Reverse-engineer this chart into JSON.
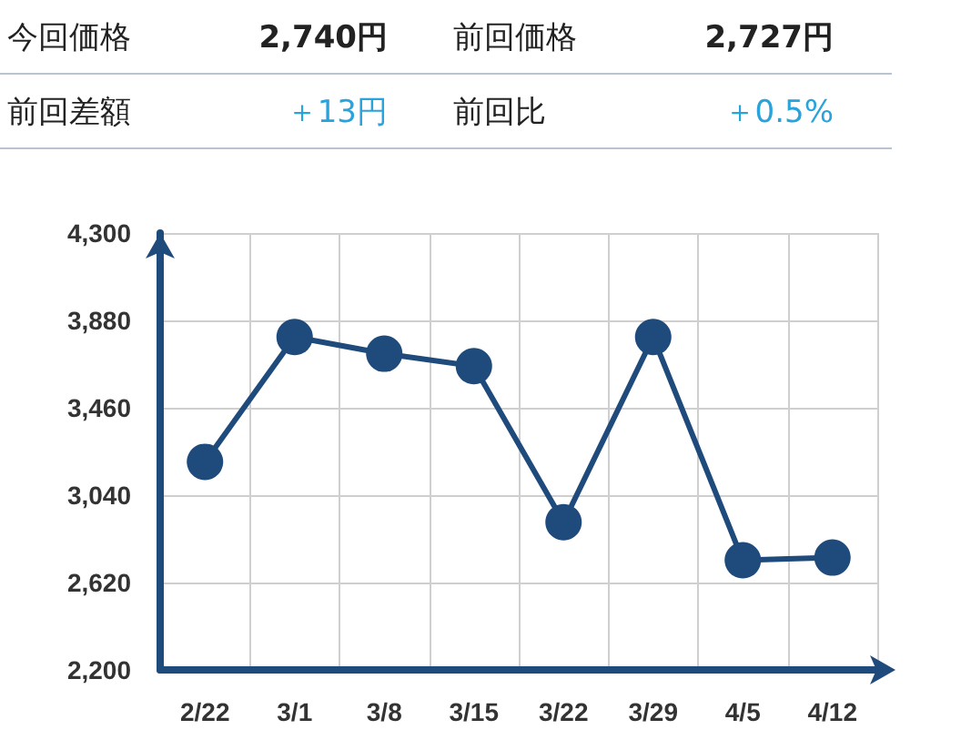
{
  "chart_data": {
    "type": "line",
    "annotations": [
      "今回価格",
      "2,740円",
      "前回価格",
      "2,727円",
      "前回差額",
      "＋13円",
      "前回比",
      "＋0.5%"
    ],
    "categories": [
      "2/22",
      "3/1",
      "3/8",
      "3/15",
      "3/22",
      "3/29",
      "4/5",
      "4/12"
    ],
    "series": [
      {
        "color": "#1f4a7c",
        "values": [
          3200,
          3800,
          3720,
          3660,
          2910,
          3800,
          2727,
          2740
        ]
      }
    ],
    "ylim": [
      2200,
      4300
    ],
    "yticks": [
      {
        "value": 2200,
        "label": "2,200"
      },
      {
        "value": 2620,
        "label": "2,620"
      },
      {
        "value": 3040,
        "label": "3,040"
      },
      {
        "value": 3460,
        "label": "3,460"
      },
      {
        "value": 3880,
        "label": "3,880"
      },
      {
        "value": 4300,
        "label": "4,300"
      }
    ],
    "grid": true,
    "marker": "circle",
    "line_style": "solid"
  }
}
